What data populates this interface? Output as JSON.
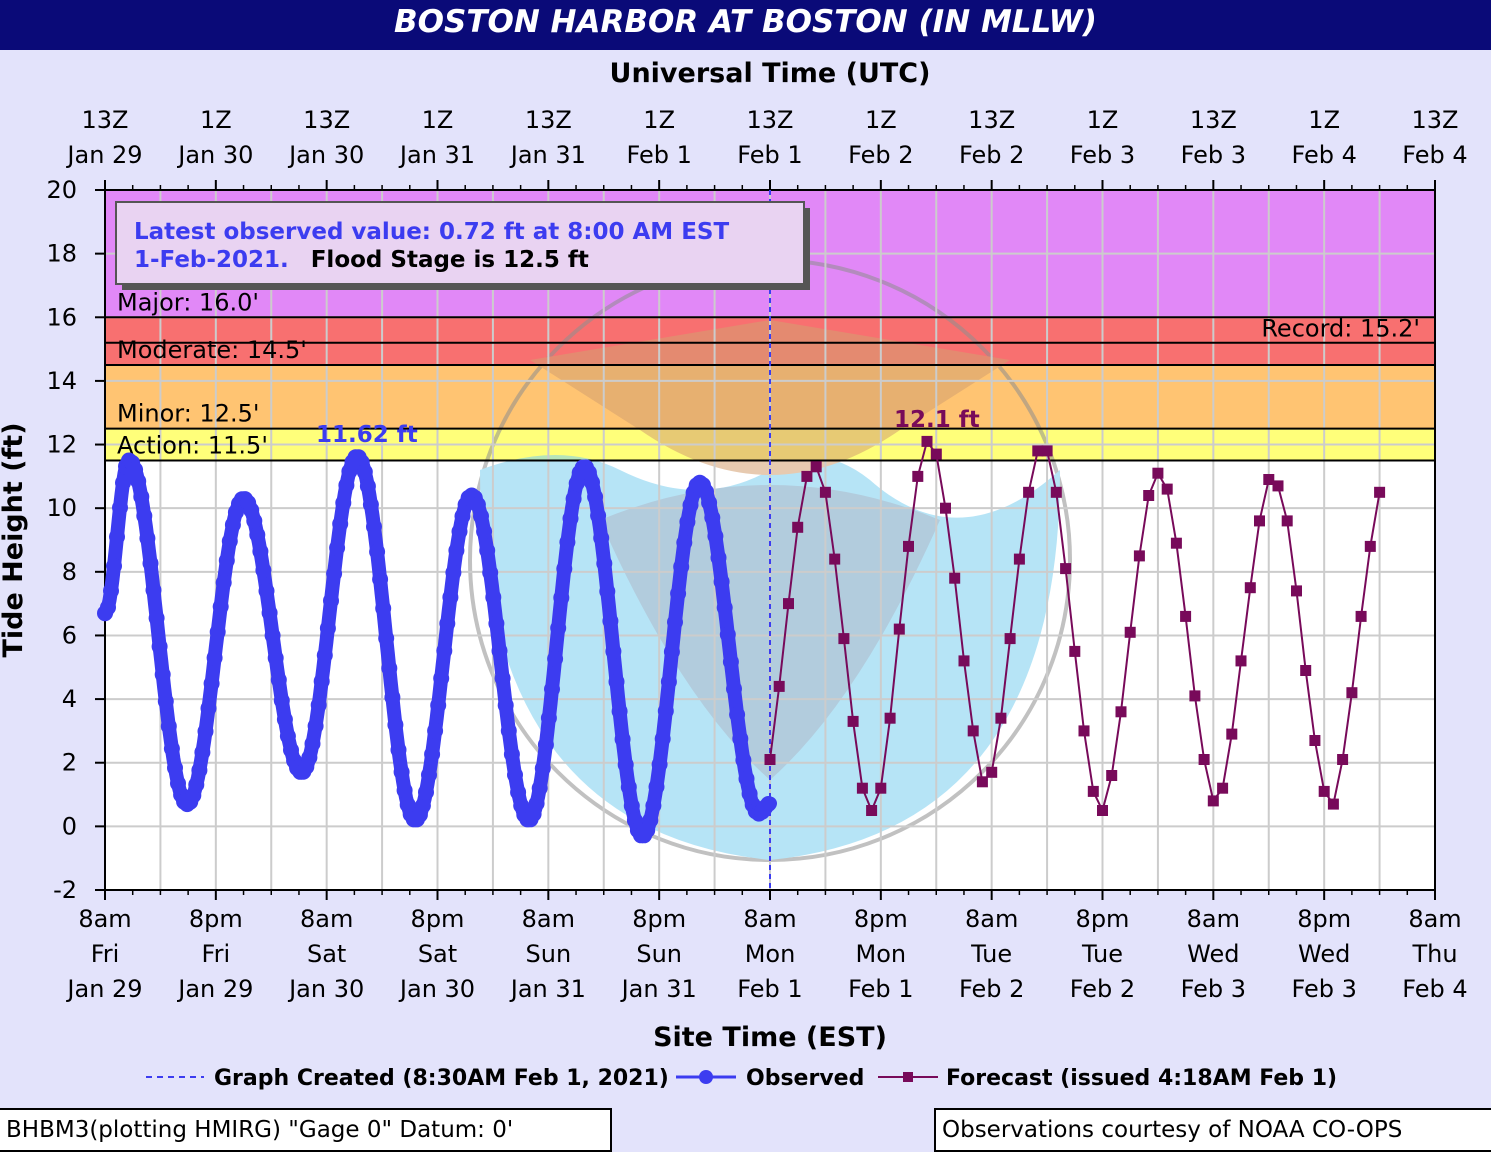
{
  "title": "BOSTON HARBOR AT BOSTON (IN MLLW)",
  "top_axis_title": "Universal Time (UTC)",
  "bottom_axis_title": "Site Time (EST)",
  "y_axis_title": "Tide Height (ft)",
  "info_box": {
    "line1": "Latest observed value: 0.72 ft at 8:00 AM EST",
    "line2_blue": "1-Feb-2021.",
    "line2_black": "Flood Stage is 12.5 ft"
  },
  "legend": {
    "graph_created": "Graph Created (8:30AM Feb 1, 2021)",
    "observed": "Observed",
    "forecast": "Forecast (issued 4:18AM Feb 1)"
  },
  "footer": {
    "left": "BHBM3(plotting HMIRG) \"Gage 0\" Datum: 0'",
    "right": "Observations courtesy of NOAA CO-OPS"
  },
  "colors": {
    "title_bg": "#0a0a78",
    "major": "#e188f7",
    "moderate": "#f87070",
    "minor": "#ffc472",
    "action": "#ffff7a",
    "observed": "#3c3cf0",
    "forecast": "#780a5a",
    "grid": "#cccccc",
    "logo_blue": "#7ccff0",
    "logo_gray": "#8f8f8f",
    "logo_tan": "#d4a070"
  },
  "watermark_icon": "noaa-logo-watermark",
  "chart_data": {
    "type": "line",
    "ylabel": "Tide Height (ft)",
    "ylim": [
      -2,
      20
    ],
    "y_ticks": [
      -2,
      0,
      2,
      4,
      6,
      8,
      10,
      12,
      14,
      16,
      18,
      20
    ],
    "x_range_hours_utc": [
      "13Z Jan 29",
      "13Z Feb 4"
    ],
    "top_ticks": [
      {
        "top": "13Z",
        "bottom": "Jan 29"
      },
      {
        "top": "1Z",
        "bottom": "Jan 30"
      },
      {
        "top": "13Z",
        "bottom": "Jan 30"
      },
      {
        "top": "1Z",
        "bottom": "Jan 31"
      },
      {
        "top": "13Z",
        "bottom": "Jan 31"
      },
      {
        "top": "1Z",
        "bottom": "Feb  1"
      },
      {
        "top": "13Z",
        "bottom": "Feb  1"
      },
      {
        "top": "1Z",
        "bottom": "Feb  2"
      },
      {
        "top": "13Z",
        "bottom": "Feb  2"
      },
      {
        "top": "1Z",
        "bottom": "Feb  3"
      },
      {
        "top": "13Z",
        "bottom": "Feb  3"
      },
      {
        "top": "1Z",
        "bottom": "Feb  4"
      },
      {
        "top": "13Z",
        "bottom": "Feb  4"
      }
    ],
    "bottom_ticks": [
      {
        "l1": "8am",
        "l2": "Fri",
        "l3": "Jan 29"
      },
      {
        "l1": "8pm",
        "l2": "Fri",
        "l3": "Jan 29"
      },
      {
        "l1": "8am",
        "l2": "Sat",
        "l3": "Jan 30"
      },
      {
        "l1": "8pm",
        "l2": "Sat",
        "l3": "Jan 30"
      },
      {
        "l1": "8am",
        "l2": "Sun",
        "l3": "Jan 31"
      },
      {
        "l1": "8pm",
        "l2": "Sun",
        "l3": "Jan 31"
      },
      {
        "l1": "8am",
        "l2": "Mon",
        "l3": "Feb 1"
      },
      {
        "l1": "8pm",
        "l2": "Mon",
        "l3": "Feb 1"
      },
      {
        "l1": "8am",
        "l2": "Tue",
        "l3": "Feb 2"
      },
      {
        "l1": "8pm",
        "l2": "Tue",
        "l3": "Feb 2"
      },
      {
        "l1": "8am",
        "l2": "Wed",
        "l3": "Feb 3"
      },
      {
        "l1": "8pm",
        "l2": "Wed",
        "l3": "Feb 3"
      },
      {
        "l1": "8am",
        "l2": "Thu",
        "l3": "Feb 4"
      }
    ],
    "flood_categories": [
      {
        "name": "Major",
        "label": "Major: 16.0'",
        "from": 16.0,
        "to": 20.0
      },
      {
        "name": "Moderate",
        "label": "Moderate: 14.5'",
        "from": 14.5,
        "to": 16.0
      },
      {
        "name": "Minor",
        "label": "Minor: 12.5'",
        "from": 12.5,
        "to": 14.5
      },
      {
        "name": "Action",
        "label": "Action: 11.5'",
        "from": 11.5,
        "to": 12.5
      }
    ],
    "record": {
      "label": "Record: 15.2'",
      "value": 15.2
    },
    "graph_created_hour": 72,
    "observed": {
      "name": "Observed",
      "peak_label": "11.62 ft",
      "peak_label_value": 11.62,
      "extrema": [
        [
          0,
          6.7
        ],
        [
          2.6,
          11.5
        ],
        [
          8.9,
          0.7
        ],
        [
          15.0,
          10.3
        ],
        [
          21.3,
          1.7
        ],
        [
          27.3,
          11.62
        ],
        [
          33.6,
          0.2
        ],
        [
          39.7,
          10.4
        ],
        [
          45.9,
          0.2
        ],
        [
          51.9,
          11.3
        ],
        [
          58.2,
          -0.3
        ],
        [
          64.4,
          10.8
        ],
        [
          70.8,
          0.4
        ],
        [
          72,
          0.72
        ]
      ]
    },
    "forecast": {
      "name": "Forecast",
      "peak_label": "12.1 ft",
      "peak_label_value": 12.1,
      "points": [
        [
          72,
          2.1
        ],
        [
          73,
          4.4
        ],
        [
          74,
          7.0
        ],
        [
          75,
          9.4
        ],
        [
          76,
          11.0
        ],
        [
          77,
          11.3
        ],
        [
          78,
          10.5
        ],
        [
          79,
          8.4
        ],
        [
          80,
          5.9
        ],
        [
          81,
          3.3
        ],
        [
          82,
          1.2
        ],
        [
          83,
          0.5
        ],
        [
          84,
          1.2
        ],
        [
          85,
          3.4
        ],
        [
          86,
          6.2
        ],
        [
          87,
          8.8
        ],
        [
          88,
          11.0
        ],
        [
          89,
          12.1
        ],
        [
          90,
          11.7
        ],
        [
          91,
          10.0
        ],
        [
          92,
          7.8
        ],
        [
          93,
          5.2
        ],
        [
          94,
          3.0
        ],
        [
          95,
          1.4
        ],
        [
          96,
          1.7
        ],
        [
          97,
          3.4
        ],
        [
          98,
          5.9
        ],
        [
          99,
          8.4
        ],
        [
          100,
          10.5
        ],
        [
          101,
          11.8
        ],
        [
          102,
          11.8
        ],
        [
          103,
          10.5
        ],
        [
          104,
          8.1
        ],
        [
          105,
          5.5
        ],
        [
          106,
          3.0
        ],
        [
          107,
          1.1
        ],
        [
          108,
          0.5
        ],
        [
          109,
          1.6
        ],
        [
          110,
          3.6
        ],
        [
          111,
          6.1
        ],
        [
          112,
          8.5
        ],
        [
          113,
          10.4
        ],
        [
          114,
          11.1
        ],
        [
          115,
          10.6
        ],
        [
          116,
          8.9
        ],
        [
          117,
          6.6
        ],
        [
          118,
          4.1
        ],
        [
          119,
          2.1
        ],
        [
          120,
          0.8
        ],
        [
          121,
          1.2
        ],
        [
          122,
          2.9
        ],
        [
          123,
          5.2
        ],
        [
          124,
          7.5
        ],
        [
          125,
          9.6
        ],
        [
          126,
          10.9
        ],
        [
          127,
          10.7
        ],
        [
          128,
          9.6
        ],
        [
          129,
          7.4
        ],
        [
          130,
          4.9
        ],
        [
          131,
          2.7
        ],
        [
          132,
          1.1
        ],
        [
          133,
          0.7
        ],
        [
          134,
          2.1
        ],
        [
          135,
          4.2
        ],
        [
          136,
          6.6
        ],
        [
          137,
          8.8
        ],
        [
          138,
          10.5
        ]
      ]
    }
  }
}
